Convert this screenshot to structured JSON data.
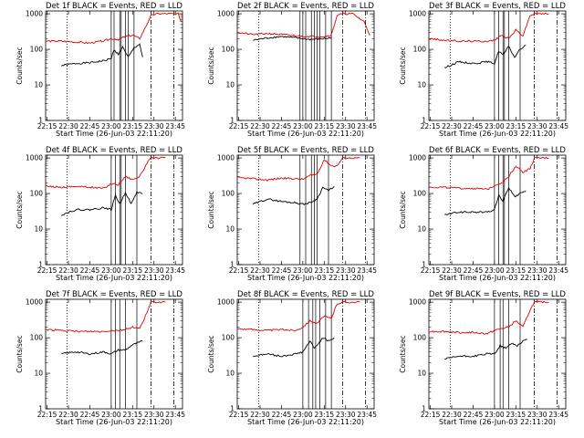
{
  "x_tick_labels": [
    "22:15",
    "22:30",
    "22:45",
    "23:00",
    "23:15",
    "23:30",
    "23:45"
  ],
  "y_tick_labels": [
    "1",
    "10",
    "100",
    "1000"
  ],
  "xlabel": "Start Time (26-Jun-03 22:11:20)",
  "ylabel": "Counts/sec",
  "colors": {
    "events": "#000000",
    "lld": "#e00000"
  },
  "chart_data": [
    {
      "type": "line",
      "title": "Det 1f BLACK = Events, RED = LLD",
      "xlabel": "Start Time (26-Jun-03 22:11:20)",
      "ylabel": "Counts/sec",
      "y_scale": "log",
      "ylim": [
        1,
        1000
      ],
      "x_ticks": [
        "22:15",
        "22:30",
        "22:45",
        "23:00",
        "23:15",
        "23:30",
        "23:45"
      ],
      "series": [
        {
          "name": "BLACK = Events",
          "color": "#000000",
          "x": [
            "22:25",
            "22:35",
            "22:45",
            "22:55",
            "23:00",
            "23:02",
            "23:05",
            "23:08",
            "23:10",
            "23:12",
            "23:16",
            "23:20",
            "23:22"
          ],
          "y": [
            35,
            40,
            42,
            48,
            55,
            100,
            70,
            120,
            80,
            60,
            110,
            140,
            60
          ]
        },
        {
          "name": "RED = LLD",
          "color": "#e00000",
          "x": [
            "22:14",
            "22:25",
            "22:35",
            "22:45",
            "22:55",
            "23:00",
            "23:05",
            "23:10",
            "23:15",
            "23:20",
            "23:25",
            "23:28",
            "23:33",
            "23:40",
            "23:47",
            "23:49"
          ],
          "y": [
            170,
            170,
            160,
            150,
            175,
            200,
            190,
            230,
            250,
            200,
            500,
            900,
            1000,
            1000,
            1000,
            600
          ]
        }
      ]
    },
    {
      "type": "line",
      "title": "Det 2f BLACK = Events, RED = LLD",
      "xlabel": "Start Time (26-Jun-03 22:11:20)",
      "ylabel": "Counts/sec",
      "y_scale": "log",
      "ylim": [
        1,
        1000
      ],
      "x_ticks": [
        "22:15",
        "22:30",
        "22:45",
        "23:00",
        "23:15",
        "23:30",
        "23:45"
      ],
      "series": [
        {
          "name": "BLACK = Events",
          "color": "#000000",
          "x": [
            "22:25",
            "22:35",
            "22:45",
            "22:55",
            "23:05",
            "23:15",
            "23:20"
          ],
          "y": [
            180,
            210,
            230,
            210,
            190,
            200,
            210
          ]
        },
        {
          "name": "RED = LLD",
          "color": "#e00000",
          "x": [
            "22:14",
            "22:25",
            "22:35",
            "22:45",
            "22:55",
            "23:05",
            "23:15",
            "23:20",
            "23:24",
            "23:28",
            "23:35",
            "23:43",
            "23:47"
          ],
          "y": [
            300,
            260,
            280,
            260,
            240,
            230,
            230,
            250,
            900,
            1000,
            1000,
            600,
            250
          ]
        }
      ]
    },
    {
      "type": "line",
      "title": "Det 3f BLACK = Events, RED = LLD",
      "xlabel": "Start Time (26-Jun-03 22:11:20)",
      "ylabel": "Counts/sec",
      "y_scale": "log",
      "ylim": [
        1,
        1000
      ],
      "x_ticks": [
        "22:15",
        "22:30",
        "22:45",
        "23:00",
        "23:15",
        "23:30",
        "23:45"
      ],
      "series": [
        {
          "name": "BLACK = Events",
          "color": "#000000",
          "x": [
            "22:25",
            "22:35",
            "22:45",
            "22:55",
            "23:00",
            "23:03",
            "23:06",
            "23:10",
            "23:14",
            "23:18",
            "23:22"
          ],
          "y": [
            30,
            45,
            40,
            45,
            40,
            90,
            70,
            120,
            60,
            100,
            130
          ]
        },
        {
          "name": "RED = LLD",
          "color": "#e00000",
          "x": [
            "22:14",
            "22:25",
            "22:35",
            "22:45",
            "22:55",
            "23:00",
            "23:05",
            "23:10",
            "23:15",
            "23:20",
            "23:25",
            "23:28",
            "23:33",
            "23:38"
          ],
          "y": [
            200,
            180,
            170,
            170,
            170,
            180,
            250,
            200,
            350,
            240,
            900,
            1000,
            1000,
            1000
          ]
        }
      ]
    },
    {
      "type": "line",
      "title": "Det 4f BLACK = Events, RED = LLD",
      "xlabel": "Start Time (26-Jun-03 22:11:20)",
      "ylabel": "Counts/sec",
      "y_scale": "log",
      "ylim": [
        1,
        1000
      ],
      "x_ticks": [
        "22:15",
        "22:30",
        "22:45",
        "23:00",
        "23:15",
        "23:30",
        "23:45"
      ],
      "series": [
        {
          "name": "BLACK = Events",
          "color": "#000000",
          "x": [
            "22:25",
            "22:35",
            "22:45",
            "22:55",
            "23:00",
            "23:03",
            "23:06",
            "23:10",
            "23:14",
            "23:18",
            "23:22"
          ],
          "y": [
            25,
            35,
            35,
            40,
            35,
            90,
            50,
            110,
            50,
            110,
            100
          ]
        },
        {
          "name": "RED = LLD",
          "color": "#e00000",
          "x": [
            "22:14",
            "22:25",
            "22:35",
            "22:45",
            "22:55",
            "23:00",
            "23:05",
            "23:10",
            "23:15",
            "23:20",
            "23:25",
            "23:28",
            "23:33",
            "23:38"
          ],
          "y": [
            160,
            150,
            160,
            150,
            140,
            190,
            180,
            300,
            250,
            300,
            700,
            1000,
            1000,
            1000
          ]
        }
      ]
    },
    {
      "type": "line",
      "title": "Det 5f BLACK = Events, RED = LLD",
      "xlabel": "Start Time (26-Jun-03 22:11:20)",
      "ylabel": "Counts/sec",
      "y_scale": "log",
      "ylim": [
        1,
        1000
      ],
      "x_ticks": [
        "22:15",
        "22:30",
        "22:45",
        "23:00",
        "23:15",
        "23:30",
        "23:45"
      ],
      "series": [
        {
          "name": "BLACK = Events",
          "color": "#000000",
          "x": [
            "22:25",
            "22:35",
            "22:45",
            "22:55",
            "23:00",
            "23:05",
            "23:10",
            "23:14",
            "23:18",
            "23:22"
          ],
          "y": [
            50,
            70,
            60,
            55,
            50,
            55,
            70,
            150,
            120,
            160
          ]
        },
        {
          "name": "RED = LLD",
          "color": "#e00000",
          "x": [
            "22:14",
            "22:25",
            "22:35",
            "22:45",
            "22:55",
            "23:00",
            "23:05",
            "23:10",
            "23:15",
            "23:20",
            "23:24",
            "23:28",
            "23:33",
            "23:40"
          ],
          "y": [
            280,
            260,
            240,
            270,
            260,
            250,
            320,
            350,
            900,
            600,
            600,
            1000,
            1000,
            1000
          ]
        }
      ]
    },
    {
      "type": "line",
      "title": "Det 6f BLACK = Events, RED = LLD",
      "xlabel": "Start Time (26-Jun-03 22:11:20)",
      "ylabel": "Counts/sec",
      "y_scale": "log",
      "ylim": [
        1,
        1000
      ],
      "x_ticks": [
        "22:15",
        "22:30",
        "22:45",
        "23:00",
        "23:15",
        "23:30",
        "23:45"
      ],
      "series": [
        {
          "name": "BLACK = Events",
          "color": "#000000",
          "x": [
            "22:25",
            "22:35",
            "22:45",
            "22:55",
            "23:00",
            "23:03",
            "23:06",
            "23:10",
            "23:14",
            "23:18",
            "23:22"
          ],
          "y": [
            25,
            30,
            30,
            30,
            35,
            90,
            60,
            150,
            80,
            100,
            120
          ]
        },
        {
          "name": "RED = LLD",
          "color": "#e00000",
          "x": [
            "22:14",
            "22:25",
            "22:35",
            "22:45",
            "22:55",
            "23:00",
            "23:05",
            "23:10",
            "23:15",
            "23:20",
            "23:25",
            "23:28",
            "23:33",
            "23:38"
          ],
          "y": [
            150,
            150,
            140,
            140,
            130,
            170,
            200,
            300,
            600,
            400,
            500,
            1000,
            1000,
            1000
          ]
        }
      ]
    },
    {
      "type": "line",
      "title": "Det 7f BLACK = Events, RED = LLD",
      "xlabel": "Start Time (26-Jun-03 22:11:20)",
      "ylabel": "Counts/sec",
      "y_scale": "log",
      "ylim": [
        1,
        1000
      ],
      "x_ticks": [
        "22:15",
        "22:30",
        "22:45",
        "23:00",
        "23:15",
        "23:30",
        "23:45"
      ],
      "series": [
        {
          "name": "BLACK = Events",
          "color": "#000000",
          "x": [
            "22:25",
            "22:35",
            "22:45",
            "22:55",
            "23:00",
            "23:05",
            "23:10",
            "23:14",
            "23:18",
            "23:22"
          ],
          "y": [
            35,
            40,
            35,
            40,
            35,
            45,
            45,
            60,
            70,
            80
          ]
        },
        {
          "name": "RED = LLD",
          "color": "#e00000",
          "x": [
            "22:14",
            "22:25",
            "22:35",
            "22:45",
            "22:55",
            "23:00",
            "23:05",
            "23:10",
            "23:15",
            "23:20",
            "23:25",
            "23:28",
            "23:33",
            "23:38"
          ],
          "y": [
            170,
            160,
            150,
            150,
            150,
            160,
            160,
            170,
            200,
            180,
            500,
            1000,
            1000,
            1000
          ]
        }
      ]
    },
    {
      "type": "line",
      "title": "Det 8f BLACK = Events, RED = LLD",
      "xlabel": "Start Time (26-Jun-03 22:11:20)",
      "ylabel": "Counts/sec",
      "y_scale": "log",
      "ylim": [
        1,
        1000
      ],
      "x_ticks": [
        "22:15",
        "22:30",
        "22:45",
        "23:00",
        "23:15",
        "23:30",
        "23:45"
      ],
      "series": [
        {
          "name": "BLACK = Events",
          "color": "#000000",
          "x": [
            "22:25",
            "22:35",
            "22:45",
            "22:55",
            "23:00",
            "23:05",
            "23:08",
            "23:11",
            "23:14",
            "23:18",
            "23:22"
          ],
          "y": [
            30,
            35,
            30,
            35,
            40,
            80,
            50,
            70,
            100,
            80,
            100
          ]
        },
        {
          "name": "RED = LLD",
          "color": "#e00000",
          "x": [
            "22:14",
            "22:25",
            "22:35",
            "22:45",
            "22:55",
            "23:00",
            "23:05",
            "23:10",
            "23:15",
            "23:20",
            "23:24",
            "23:28",
            "23:33",
            "23:40"
          ],
          "y": [
            180,
            170,
            160,
            170,
            160,
            200,
            300,
            250,
            400,
            350,
            900,
            1000,
            1000,
            1000
          ]
        }
      ]
    },
    {
      "type": "line",
      "title": "Det 9f BLACK = Events, RED = LLD",
      "xlabel": "Start Time (26-Jun-03 22:11:20)",
      "ylabel": "Counts/sec",
      "y_scale": "log",
      "ylim": [
        1,
        1000
      ],
      "x_ticks": [
        "22:15",
        "22:30",
        "22:45",
        "23:00",
        "23:15",
        "23:30",
        "23:45"
      ],
      "series": [
        {
          "name": "BLACK = Events",
          "color": "#000000",
          "x": [
            "22:25",
            "22:35",
            "22:45",
            "22:55",
            "23:00",
            "23:04",
            "23:08",
            "23:12",
            "23:16",
            "23:20",
            "23:23"
          ],
          "y": [
            25,
            30,
            30,
            35,
            35,
            60,
            50,
            70,
            60,
            80,
            90
          ]
        },
        {
          "name": "RED = LLD",
          "color": "#e00000",
          "x": [
            "22:14",
            "22:25",
            "22:35",
            "22:45",
            "22:55",
            "23:00",
            "23:05",
            "23:10",
            "23:15",
            "23:20",
            "23:25",
            "23:28",
            "23:33",
            "23:38"
          ],
          "y": [
            150,
            150,
            140,
            140,
            130,
            160,
            180,
            200,
            300,
            200,
            600,
            1000,
            1000,
            1000
          ]
        }
      ]
    }
  ]
}
